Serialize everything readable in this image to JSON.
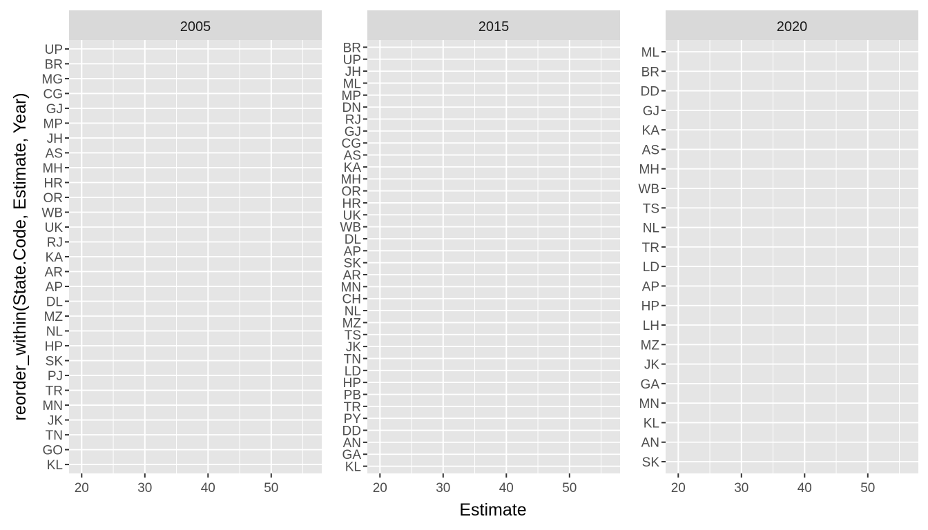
{
  "chart_data": {
    "type": "scatter",
    "xlabel": "Estimate",
    "ylabel": "reorder_within(State.Code, Estimate, Year)",
    "xlim": [
      18,
      58
    ],
    "x_ticks": [
      20,
      30,
      40,
      50
    ],
    "x_minor_ticks": [
      25,
      35,
      45,
      55
    ],
    "grid": true,
    "panels": [
      {
        "strip": "2005",
        "categories": [
          "UP",
          "BR",
          "MG",
          "CG",
          "GJ",
          "MP",
          "JH",
          "AS",
          "MH",
          "HR",
          "OR",
          "WB",
          "UK",
          "RJ",
          "KA",
          "AR",
          "AP",
          "DL",
          "MZ",
          "NL",
          "HP",
          "SK",
          "PJ",
          "TR",
          "MN",
          "JK",
          "TN",
          "GO",
          "KL"
        ],
        "values": []
      },
      {
        "strip": "2015",
        "categories": [
          "BR",
          "UP",
          "JH",
          "ML",
          "MP",
          "DN",
          "RJ",
          "GJ",
          "CG",
          "AS",
          "KA",
          "MH",
          "OR",
          "HR",
          "UK",
          "WB",
          "DL",
          "AP",
          "SK",
          "AR",
          "MN",
          "CH",
          "NL",
          "MZ",
          "TS",
          "JK",
          "TN",
          "LD",
          "HP",
          "PB",
          "TR",
          "PY",
          "DD",
          "AN",
          "GA",
          "KL"
        ],
        "values": []
      },
      {
        "strip": "2020",
        "categories": [
          "ML",
          "BR",
          "DD",
          "GJ",
          "KA",
          "AS",
          "MH",
          "WB",
          "TS",
          "NL",
          "TR",
          "LD",
          "AP",
          "HP",
          "LH",
          "MZ",
          "JK",
          "GA",
          "MN",
          "KL",
          "AN",
          "SK"
        ],
        "values": []
      }
    ]
  },
  "colors": {
    "panel_background": "#e5e5e5",
    "strip_background": "#d9d9d9",
    "gridline": "#ffffff",
    "tick_text": "#4d4d4d",
    "tick_mark": "#333333"
  }
}
